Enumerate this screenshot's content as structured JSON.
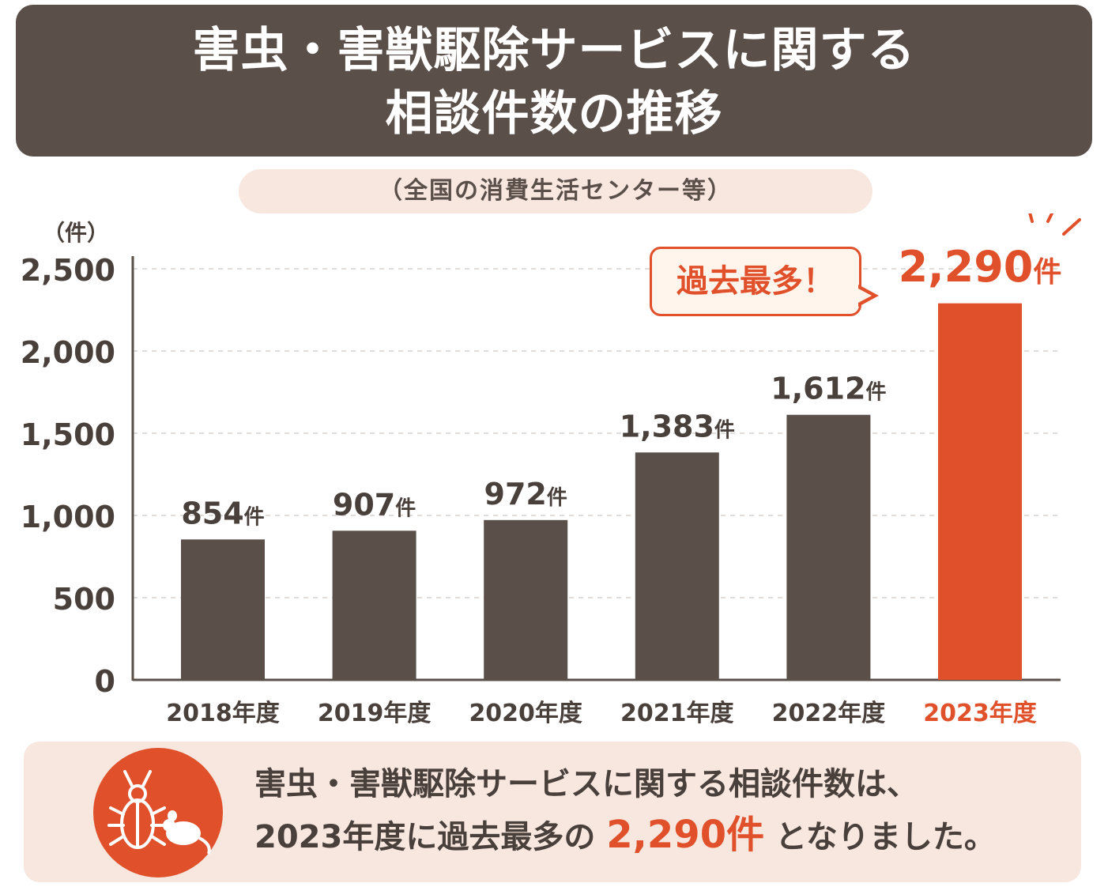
{
  "title": {
    "line1": "害虫・害獣駆除サービスに関する",
    "line2": "相談件数の推移"
  },
  "subtitle": "（全国の消費生活センター等）",
  "callout": "過去最多！",
  "summary": {
    "line1": "害虫・害獣駆除サービスに関する相談件数は、",
    "line2_prefix": "2023年度に過去最多の",
    "line2_highlight": "2,290件",
    "line2_suffix": "となりました。",
    "icon_names": [
      "beetle-icon",
      "mouse-icon"
    ]
  },
  "colors": {
    "bar": "#5b4f4a",
    "highlight": "#e0512b",
    "banner": "#5b4f4a",
    "pill": "#f7e7df"
  },
  "chart_data": {
    "type": "bar",
    "categories": [
      "2018年度",
      "2019年度",
      "2020年度",
      "2021年度",
      "2022年度",
      "2023年度"
    ],
    "values": [
      854,
      907,
      972,
      1383,
      1612,
      2290
    ],
    "value_labels": [
      "854",
      "907",
      "972",
      "1,383",
      "1,612",
      "2,290"
    ],
    "value_unit": "件",
    "highlight_index": 5,
    "ylabel": "（件）",
    "ylim": [
      0,
      2500
    ],
    "yticks": [
      0,
      500,
      1000,
      1500,
      2000,
      2500
    ],
    "ytick_labels": [
      "0",
      "500",
      "1,000",
      "1,500",
      "2,000",
      "2,500"
    ],
    "grid": true,
    "gridline_style": "dashed"
  }
}
